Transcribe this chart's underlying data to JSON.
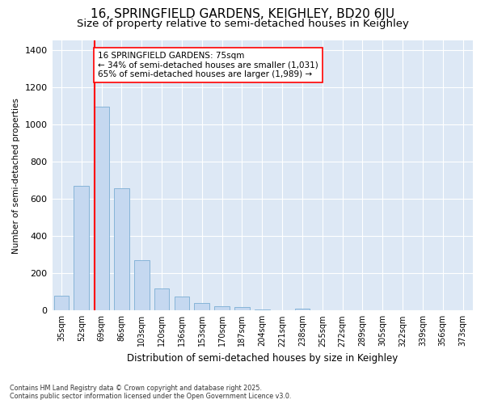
{
  "title1": "16, SPRINGFIELD GARDENS, KEIGHLEY, BD20 6JU",
  "title2": "Size of property relative to semi-detached houses in Keighley",
  "xlabel": "Distribution of semi-detached houses by size in Keighley",
  "ylabel": "Number of semi-detached properties",
  "categories": [
    "35sqm",
    "52sqm",
    "69sqm",
    "86sqm",
    "103sqm",
    "120sqm",
    "136sqm",
    "153sqm",
    "170sqm",
    "187sqm",
    "204sqm",
    "221sqm",
    "238sqm",
    "255sqm",
    "272sqm",
    "289sqm",
    "305sqm",
    "322sqm",
    "339sqm",
    "356sqm",
    "373sqm"
  ],
  "values": [
    80,
    670,
    1095,
    655,
    270,
    120,
    75,
    40,
    25,
    20,
    5,
    0,
    10,
    0,
    0,
    0,
    0,
    0,
    0,
    0,
    0
  ],
  "bar_color": "#c5d8f0",
  "bar_edge_color": "#7aadd4",
  "vline_x_index": 2,
  "vline_color": "red",
  "annotation_text": "16 SPRINGFIELD GARDENS: 75sqm\n← 34% of semi-detached houses are smaller (1,031)\n65% of semi-detached houses are larger (1,989) →",
  "annotation_box_color": "white",
  "annotation_box_edge": "red",
  "ylim": [
    0,
    1450
  ],
  "yticks": [
    0,
    200,
    400,
    600,
    800,
    1000,
    1200,
    1400
  ],
  "background_color": "#ffffff",
  "plot_bg_color": "#dde8f5",
  "grid_color": "#ffffff",
  "footnote": "Contains HM Land Registry data © Crown copyright and database right 2025.\nContains public sector information licensed under the Open Government Licence v3.0.",
  "title1_fontsize": 11,
  "title2_fontsize": 9.5,
  "bar_width": 0.75
}
